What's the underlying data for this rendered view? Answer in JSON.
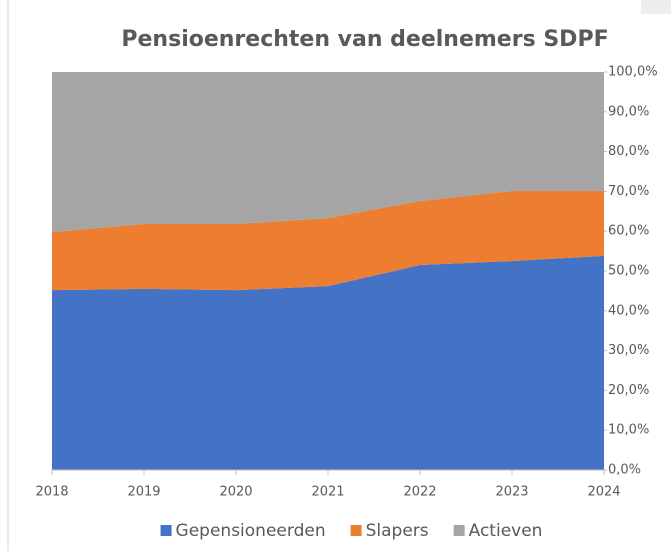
{
  "chart_data": {
    "type": "stacked-area",
    "title": "Pensioenrechten van deelnemers SDPF",
    "categories": [
      "2018",
      "2019",
      "2020",
      "2021",
      "2022",
      "2023",
      "2024"
    ],
    "series": [
      {
        "name": "Gepensioneerden",
        "color": "#4472c4",
        "values": [
          45.2,
          45.5,
          45.2,
          46.2,
          51.5,
          52.5,
          53.8
        ]
      },
      {
        "name": "Slapers",
        "color": "#ed7d31",
        "values": [
          14.6,
          16.3,
          16.6,
          17.1,
          16.1,
          17.6,
          16.3
        ]
      },
      {
        "name": "Actieven",
        "color": "#a5a5a5",
        "values": [
          40.2,
          38.2,
          38.2,
          36.7,
          32.4,
          29.9,
          29.9
        ]
      }
    ],
    "ylim": [
      0,
      100
    ],
    "yticks": [
      {
        "value": 0,
        "label": "0,0%"
      },
      {
        "value": 10,
        "label": "10,0%"
      },
      {
        "value": 20,
        "label": "20,0%"
      },
      {
        "value": 30,
        "label": "30,0%"
      },
      {
        "value": 40,
        "label": "40,0%"
      },
      {
        "value": 50,
        "label": "50,0%"
      },
      {
        "value": 60,
        "label": "60,0%"
      },
      {
        "value": 70,
        "label": "70,0%"
      },
      {
        "value": 80,
        "label": "80,0%"
      },
      {
        "value": 90,
        "label": "90,0%"
      },
      {
        "value": 100,
        "label": "100,0%"
      }
    ],
    "legend": "bottom"
  }
}
